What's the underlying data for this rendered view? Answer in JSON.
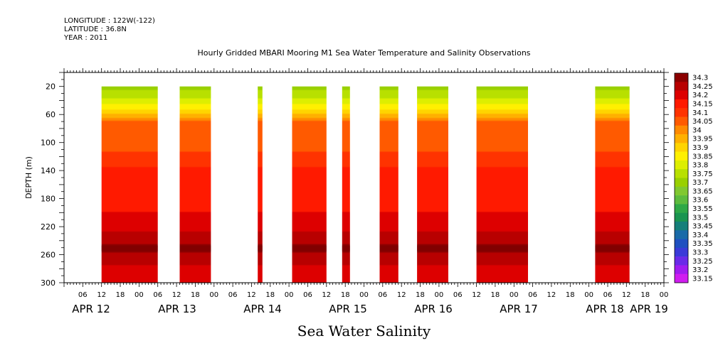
{
  "meta": {
    "longitude": "LONGITUDE : 122W(-122)",
    "latitude": "LATITUDE : 36.8N",
    "year": "YEAR : 2011"
  },
  "chart_data": {
    "type": "heatmap",
    "title": "Hourly Gridded MBARI Mooring M1 Sea Water Temperature and Salinity Observations",
    "bottom_title": "Sea Water Salinity",
    "xlabel": "",
    "ylabel": "DEPTH (m)",
    "x_range_hours": [
      0,
      192
    ],
    "x_hour_ticks": [
      "06",
      "12",
      "18",
      "00",
      "06",
      "12",
      "18",
      "00",
      "06",
      "12",
      "18",
      "00",
      "06",
      "12",
      "18",
      "00",
      "06",
      "12",
      "18",
      "00",
      "06",
      "12",
      "18",
      "00",
      "06",
      "12",
      "18",
      "00",
      "06",
      "12",
      "18",
      "00"
    ],
    "x_day_labels": [
      "APR 12",
      "APR 13",
      "APR 14",
      "APR 15",
      "APR 16",
      "APR 17",
      "APR 18",
      "APR 19"
    ],
    "ylim": [
      300,
      0
    ],
    "y_ticks": [
      20,
      60,
      100,
      140,
      180,
      220,
      260,
      300
    ],
    "data_depth_range": [
      20,
      300
    ],
    "data_blocks_hours": [
      [
        12,
        30
      ],
      [
        37,
        47
      ],
      [
        62,
        63.5
      ],
      [
        73,
        84
      ],
      [
        89,
        91.5
      ],
      [
        101,
        107
      ],
      [
        113,
        123
      ],
      [
        132,
        148.5
      ],
      [
        170,
        181
      ]
    ],
    "salinity_profile": [
      {
        "depth": 20,
        "salinity": 33.68
      },
      {
        "depth": 40,
        "salinity": 33.76
      },
      {
        "depth": 55,
        "salinity": 33.86
      },
      {
        "depth": 70,
        "salinity": 34.0
      },
      {
        "depth": 100,
        "salinity": 34.03
      },
      {
        "depth": 125,
        "salinity": 34.07
      },
      {
        "depth": 145,
        "salinity": 34.13
      },
      {
        "depth": 200,
        "salinity": 34.15
      },
      {
        "depth": 215,
        "salinity": 34.17
      },
      {
        "depth": 235,
        "salinity": 34.22
      },
      {
        "depth": 252,
        "salinity": 34.27
      },
      {
        "depth": 265,
        "salinity": 34.22
      },
      {
        "depth": 280,
        "salinity": 34.19
      },
      {
        "depth": 300,
        "salinity": 34.15
      }
    ],
    "colorbar": {
      "levels": [
        "34.3",
        "34.25",
        "34.2",
        "34.15",
        "34.1",
        "34.05",
        "34",
        "33.95",
        "33.9",
        "33.85",
        "33.8",
        "33.75",
        "33.7",
        "33.65",
        "33.6",
        "33.55",
        "33.5",
        "33.45",
        "33.4",
        "33.35",
        "33.3",
        "33.25",
        "33.2",
        "33.15"
      ],
      "colors": [
        "#8b0000",
        "#b80000",
        "#dd0000",
        "#ff1a00",
        "#ff3300",
        "#ff5a00",
        "#ff8a00",
        "#ffb000",
        "#ffd400",
        "#fff000",
        "#ddee00",
        "#b8e000",
        "#99d000",
        "#80c830",
        "#5cbb3d",
        "#2ea846",
        "#1a9450",
        "#157f7a",
        "#1a6aa8",
        "#1f50c0",
        "#3a3ad8",
        "#6a2ae8",
        "#a01cf0",
        "#d01df0"
      ]
    }
  }
}
